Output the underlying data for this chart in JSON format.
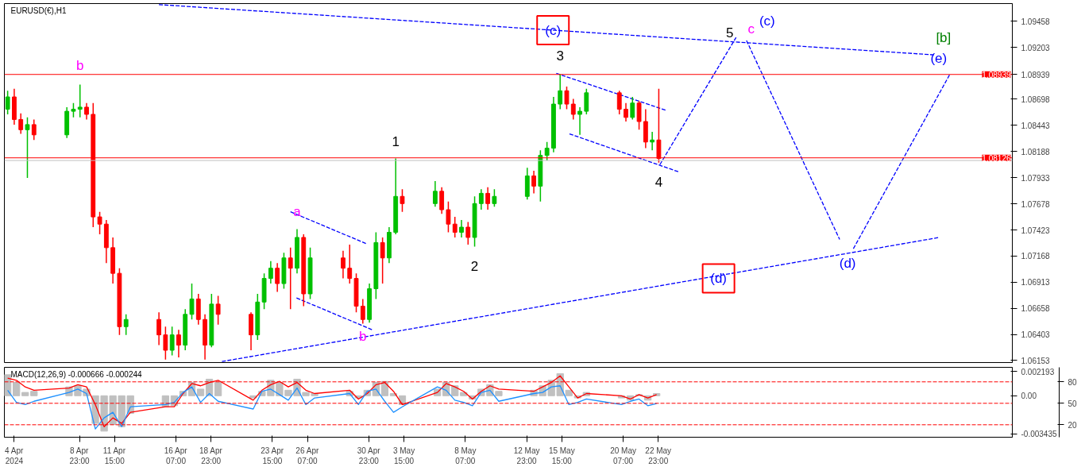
{
  "chart_data": [
    {
      "type": "candlestick",
      "title": "EURUSD(€),H1",
      "tick_labels": "y",
      "xlim": [
        "2024-04-03T06:00",
        "2024-06-18T21:00"
      ],
      "ylim": [
        1.0613,
        1.0963
      ],
      "yticks": [
        1.06153,
        1.06403,
        1.06658,
        1.06913,
        1.07168,
        1.07423,
        1.07678,
        1.07933,
        1.08188,
        1.08443,
        1.08698,
        1.08939,
        1.09203,
        1.09458
      ],
      "x": [
        "2024-04-03T12:00",
        "2024-04-04T00:00",
        "2024-04-04T12:00",
        "2024-04-05T00:00",
        "2024-04-05T12:00",
        "2024-04-08T00:00",
        "2024-04-08T12:00",
        "2024-04-09T00:00",
        "2024-04-09T12:00",
        "2024-04-10T00:00",
        "2024-04-10T12:00",
        "2024-04-11T00:00",
        "2024-04-11T12:00",
        "2024-04-12T00:00",
        "2024-04-12T12:00",
        "2024-04-15T00:00",
        "2024-04-15T12:00",
        "2024-04-16T00:00",
        "2024-04-16T12:00",
        "2024-04-17T00:00",
        "2024-04-17T12:00",
        "2024-04-18T00:00",
        "2024-04-18T12:00",
        "2024-04-19T00:00",
        "2024-04-19T12:00",
        "2024-04-22T00:00",
        "2024-04-22T12:00",
        "2024-04-23T00:00",
        "2024-04-23T12:00",
        "2024-04-24T00:00",
        "2024-04-24T12:00",
        "2024-04-25T00:00",
        "2024-04-25T12:00",
        "2024-04-26T00:00",
        "2024-04-26T12:00",
        "2024-04-29T00:00",
        "2024-04-29T12:00",
        "2024-04-30T00:00",
        "2024-04-30T12:00",
        "2024-05-01T00:00",
        "2024-05-01T12:00",
        "2024-05-02T00:00",
        "2024-05-02T12:00",
        "2024-05-03T00:00",
        "2024-05-03T12:00",
        "2024-05-06T00:00",
        "2024-05-06T12:00",
        "2024-05-07T00:00",
        "2024-05-07T12:00",
        "2024-05-08T00:00",
        "2024-05-08T12:00",
        "2024-05-09T00:00",
        "2024-05-09T12:00",
        "2024-05-10T00:00",
        "2024-05-10T12:00",
        "2024-05-13T00:00",
        "2024-05-13T12:00",
        "2024-05-14T00:00",
        "2024-05-14T12:00",
        "2024-05-15T00:00",
        "2024-05-15T12:00",
        "2024-05-16T00:00",
        "2024-05-16T12:00",
        "2024-05-17T00:00",
        "2024-05-17T12:00",
        "2024-05-20T00:00",
        "2024-05-20T12:00",
        "2024-05-21T00:00",
        "2024-05-21T12:00",
        "2024-05-22T00:00",
        "2024-05-22T12:00",
        "2024-05-23T00:00"
      ],
      "ohlc": [
        [
          1.086,
          1.0878,
          1.0855,
          1.0872
        ],
        [
          1.0872,
          1.088,
          1.0845,
          1.085
        ],
        [
          1.085,
          1.0856,
          1.0836,
          1.084
        ],
        [
          1.084,
          1.0852,
          1.0793,
          1.0845
        ],
        [
          1.0845,
          1.085,
          1.083,
          1.0835
        ],
        [
          1.0835,
          1.0862,
          1.0832,
          1.0858
        ],
        [
          1.0858,
          1.0866,
          1.0852,
          1.086
        ],
        [
          1.086,
          1.0884,
          1.0852,
          1.0862
        ],
        [
          1.0862,
          1.0866,
          1.085,
          1.0855
        ],
        [
          1.0855,
          1.0866,
          1.0745,
          1.0755
        ],
        [
          1.0755,
          1.076,
          1.0738,
          1.0748
        ],
        [
          1.0748,
          1.0752,
          1.071,
          1.0725
        ],
        [
          1.0725,
          1.0735,
          1.069,
          1.07
        ],
        [
          1.07,
          1.0705,
          1.064,
          1.0648
        ],
        [
          1.0648,
          1.066,
          1.064,
          1.0655
        ],
        [
          1.0655,
          1.0662,
          1.063,
          1.064
        ],
        [
          1.064,
          1.0648,
          1.0616,
          1.0625
        ],
        [
          1.0625,
          1.0648,
          1.062,
          1.064
        ],
        [
          1.064,
          1.0645,
          1.0618,
          1.063
        ],
        [
          1.063,
          1.0665,
          1.0625,
          1.066
        ],
        [
          1.066,
          1.069,
          1.0655,
          1.0675
        ],
        [
          1.0675,
          1.068,
          1.065,
          1.0655
        ],
        [
          1.0655,
          1.066,
          1.0616,
          1.063
        ],
        [
          1.063,
          1.068,
          1.0628,
          1.067
        ],
        [
          1.067,
          1.0678,
          1.065,
          1.066
        ],
        [
          1.066,
          1.0662,
          1.0625,
          1.064
        ],
        [
          1.064,
          1.068,
          1.0635,
          1.0672
        ],
        [
          1.0672,
          1.07,
          1.0665,
          1.0695
        ],
        [
          1.0695,
          1.0712,
          1.069,
          1.0705
        ],
        [
          1.0705,
          1.071,
          1.0682,
          1.069
        ],
        [
          1.069,
          1.072,
          1.0685,
          1.0715
        ],
        [
          1.0715,
          1.0725,
          1.0665,
          1.0705
        ],
        [
          1.0705,
          1.0743,
          1.07,
          1.0735
        ],
        [
          1.0735,
          1.0738,
          1.0668,
          1.068
        ],
        [
          1.068,
          1.0725,
          1.0675,
          1.0715
        ],
        [
          1.0715,
          1.0722,
          1.0695,
          1.0705
        ],
        [
          1.0705,
          1.0728,
          1.069,
          1.0695
        ],
        [
          1.0695,
          1.07,
          1.0662,
          1.0668
        ],
        [
          1.0668,
          1.0675,
          1.0651,
          1.0655
        ],
        [
          1.0655,
          1.069,
          1.0652,
          1.0685
        ],
        [
          1.0685,
          1.074,
          1.0675,
          1.073
        ],
        [
          1.073,
          1.0735,
          1.069,
          1.0715
        ],
        [
          1.0715,
          1.0745,
          1.071,
          1.074
        ],
        [
          1.074,
          1.0812,
          1.0738,
          1.0775
        ],
        [
          1.0775,
          1.0782,
          1.076,
          1.0768
        ],
        [
          1.0768,
          1.079,
          1.0765,
          1.078
        ],
        [
          1.078,
          1.0784,
          1.0758,
          1.0762
        ],
        [
          1.0762,
          1.077,
          1.074,
          1.0748
        ],
        [
          1.0748,
          1.0755,
          1.0735,
          1.074
        ],
        [
          1.074,
          1.0752,
          1.0735,
          1.0745
        ],
        [
          1.0745,
          1.075,
          1.0728,
          1.0735
        ],
        [
          1.0735,
          1.0775,
          1.0726,
          1.0768
        ],
        [
          1.0768,
          1.0782,
          1.0762,
          1.0778
        ],
        [
          1.0778,
          1.0784,
          1.0762,
          1.0768
        ],
        [
          1.0768,
          1.0782,
          1.0765,
          1.0775
        ],
        [
          1.0775,
          1.0803,
          1.0772,
          1.0795
        ],
        [
          1.0795,
          1.08,
          1.0778,
          1.0785
        ],
        [
          1.0785,
          1.082,
          1.077,
          1.0815
        ],
        [
          1.0815,
          1.0828,
          1.081,
          1.0822
        ],
        [
          1.0822,
          1.0872,
          1.0818,
          1.0865
        ],
        [
          1.0865,
          1.0894,
          1.086,
          1.0878
        ],
        [
          1.0878,
          1.0882,
          1.086,
          1.0865
        ],
        [
          1.0865,
          1.087,
          1.085,
          1.0855
        ],
        [
          1.0855,
          1.0862,
          1.0835,
          1.0858
        ],
        [
          1.0858,
          1.088,
          1.0855,
          1.0876
        ],
        [
          1.0876,
          1.0878,
          1.0855,
          1.086
        ],
        [
          1.086,
          1.0866,
          1.0848,
          1.0852
        ],
        [
          1.0852,
          1.0872,
          1.085,
          1.0866
        ],
        [
          1.0866,
          1.0868,
          1.084,
          1.0848
        ],
        [
          1.0848,
          1.086,
          1.0822,
          1.0828
        ],
        [
          1.0828,
          1.0838,
          1.082,
          1.083
        ],
        [
          1.083,
          1.088,
          1.0808,
          1.0812
        ]
      ],
      "series": [
        {
          "type": "line",
          "color": "#0000ff",
          "line_style": "dashed",
          "x": [
            "2024-04-15T00:00",
            "2024-06-12T22:00"
          ],
          "values": [
            1.0962,
            1.0913
          ]
        },
        {
          "type": "line",
          "color": "#0000ff",
          "line_style": "dashed",
          "x": [
            "2024-04-19T19:00",
            "2024-06-13T08:00"
          ],
          "values": [
            1.0614,
            1.0735
          ]
        },
        {
          "type": "line",
          "color": "#0000ff",
          "line_style": "dashed",
          "x": [
            "2024-04-25T00:00",
            "2024-04-30T18:00"
          ],
          "values": [
            1.076,
            1.0729
          ]
        },
        {
          "type": "line",
          "color": "#0000ff",
          "line_style": "dashed",
          "x": [
            "2024-04-25T11:00",
            "2024-05-01T05:00"
          ],
          "values": [
            1.0676,
            1.0645
          ]
        },
        {
          "type": "line",
          "color": "#0000ff",
          "line_style": "dashed",
          "x": [
            "2024-05-15T05:00",
            "2024-05-23T13:00"
          ],
          "values": [
            1.0895,
            1.0859
          ]
        },
        {
          "type": "line",
          "color": "#0000ff",
          "line_style": "dashed",
          "x": [
            "2024-05-16T05:00",
            "2024-05-24T12:00"
          ],
          "values": [
            1.0836,
            1.0799
          ]
        },
        {
          "type": "line",
          "color": "#0000ff",
          "line_style": "dashed",
          "x": [
            "2024-05-23T02:00",
            "2024-05-28T21:00"
          ],
          "values": [
            1.0806,
            1.093
          ]
        },
        {
          "type": "line",
          "color": "#0000ff",
          "line_style": "dashed",
          "x": [
            "2024-05-29T16:00",
            "2024-06-05T18:00"
          ],
          "values": [
            1.0927,
            1.0733
          ]
        },
        {
          "type": "line",
          "color": "#0000ff",
          "line_style": "dashed",
          "x": [
            "2024-06-06T19:00",
            "2024-06-14T03:00"
          ],
          "values": [
            1.0724,
            1.0894
          ]
        }
      ],
      "ref_lines": [
        {
          "axis": "y",
          "value": 1.08939,
          "label": "1.08939",
          "color": "#ff0000",
          "line_style": "solid"
        },
        {
          "axis": "y",
          "value": 1.08126,
          "label": "1.08126",
          "color": "#ff0000",
          "line_style": "solid"
        },
        {
          "axis": "y",
          "value": 1.081,
          "label": null,
          "color": "#c0c0c0",
          "line_style": "solid"
        }
      ],
      "annotations": [
        {
          "text": "b",
          "x": "2024-04-09T00:00",
          "y": 1.0884
        },
        {
          "text": "a",
          "x": "2024-04-25T12:00",
          "y": 1.0743
        },
        {
          "text": "b",
          "x": "2024-04-30T12:00",
          "y": 1.0651
        },
        {
          "text": "1",
          "x": "2024-05-03T00:00",
          "y": 1.0812
        },
        {
          "text": "2",
          "x": "2024-05-09T00:00",
          "y": 1.0726
        },
        {
          "text": "3",
          "x": "2024-05-15T12:00",
          "y": 1.0894
        },
        {
          "text": "4",
          "x": "2024-05-23T00:00",
          "y": 1.0808
        },
        {
          "text": "5",
          "x": "2024-05-28T21:00",
          "y": 1.093
        },
        {
          "text": "c",
          "x": "2024-05-29T16:00",
          "y": 1.0927
        },
        {
          "text": "(c)",
          "x": "2024-05-29T16:00",
          "y": 1.0927
        },
        {
          "text": "(c)",
          "x": "2024-05-14T23:00",
          "y": 1.0937
        },
        {
          "text": "(d)",
          "x": "2024-05-27T13:00",
          "y": 1.0695
        },
        {
          "text": "(d)",
          "x": "2024-06-05T18:00",
          "y": 1.0733
        },
        {
          "text": "(e)",
          "x": "2024-06-14T03:00",
          "y": 1.0894
        },
        {
          "text": "[b]",
          "x": "2024-06-14T03:00",
          "y": 1.0894
        }
      ]
    },
    {
      "type": "bar",
      "title": "MACD(12,26,9) -0.000666 -0.000244",
      "xlim": [
        "2024-04-03T06:00",
        "2024-06-18T21:00"
      ],
      "ylim": [
        -0.00375,
        0.00257
      ],
      "yticks": [
        0.002193,
        {
          "value": 0,
          "label": "0.00"
        },
        -0.003435
      ],
      "y2lim": [
        2.6,
        100.3
      ],
      "y2ticks": [
        20,
        50,
        80
      ],
      "xticks": [
        {
          "value": "2024-04-04T00:00",
          "label": "4 Apr 2024"
        },
        {
          "value": "2024-04-08T23:00",
          "label": "8 Apr 23:00"
        },
        {
          "value": "2024-04-11T15:00",
          "label": "11 Apr 15:00"
        },
        {
          "value": "2024-04-16T07:00",
          "label": "16 Apr 07:00"
        },
        {
          "value": "2024-04-18T23:00",
          "label": "18 Apr 23:00"
        },
        {
          "value": "2024-04-23T15:00",
          "label": "23 Apr 15:00"
        },
        {
          "value": "2024-04-26T07:00",
          "label": "26 Apr 07:00"
        },
        {
          "value": "2024-04-30T23:00",
          "label": "30 Apr 23:00"
        },
        {
          "value": "2024-05-03T15:00",
          "label": "3 May 15:00"
        },
        {
          "value": "2024-05-08T07:00",
          "label": "8 May 07:00"
        },
        {
          "value": "2024-05-12T23:00",
          "label": "12 May 23:00"
        },
        {
          "value": "2024-05-15T15:00",
          "label": "15 May 15:00"
        },
        {
          "value": "2024-05-20T07:00",
          "label": "20 May 07:00"
        },
        {
          "value": "2024-05-22T23:00",
          "label": "22 May 23:00"
        }
      ],
      "x": [
        "2024-04-03T12:00",
        "2024-04-04T04:00",
        "2024-04-04T20:00",
        "2024-04-05T12:00",
        "2024-04-08T04:00",
        "2024-04-08T20:00",
        "2024-04-09T12:00",
        "2024-04-10T04:00",
        "2024-04-10T20:00",
        "2024-04-11T12:00",
        "2024-04-12T04:00",
        "2024-04-12T20:00",
        "2024-04-15T12:00",
        "2024-04-16T04:00",
        "2024-04-16T20:00",
        "2024-04-17T12:00",
        "2024-04-18T04:00",
        "2024-04-18T20:00",
        "2024-04-19T12:00",
        "2024-04-22T04:00",
        "2024-04-22T20:00",
        "2024-04-23T12:00",
        "2024-04-24T04:00",
        "2024-04-24T20:00",
        "2024-04-25T12:00",
        "2024-04-26T04:00",
        "2024-04-26T20:00",
        "2024-04-29T12:00",
        "2024-04-30T04:00",
        "2024-04-30T20:00",
        "2024-05-01T12:00",
        "2024-05-02T04:00",
        "2024-05-02T20:00",
        "2024-05-03T12:00",
        "2024-05-06T04:00",
        "2024-05-06T20:00",
        "2024-05-07T12:00",
        "2024-05-08T04:00",
        "2024-05-08T20:00",
        "2024-05-09T12:00",
        "2024-05-10T04:00",
        "2024-05-10T20:00",
        "2024-05-13T12:00",
        "2024-05-14T04:00",
        "2024-05-14T20:00",
        "2024-05-15T12:00",
        "2024-05-16T04:00",
        "2024-05-16T20:00",
        "2024-05-17T12:00",
        "2024-05-20T04:00",
        "2024-05-20T20:00",
        "2024-05-21T12:00",
        "2024-05-22T04:00",
        "2024-05-22T20:00"
      ],
      "series": [
        {
          "type": "bar",
          "color": "#c0c0c0",
          "values": [
            0.0019,
            0.0012,
            0.0003,
            0.0004,
            0.0008,
            0.0009,
            0.0006,
            -0.0025,
            -0.0032,
            -0.0026,
            -0.0028,
            -0.0016,
            -0.001,
            -0.0009,
            0.0004,
            0.0012,
            0.0006,
            0.0015,
            0.0012,
            -0.0002,
            0.0004,
            0.0014,
            0.0012,
            0.0005,
            0.0015,
            0.0003,
            0.0002,
            0.0004,
            -0.0002,
            0.0005,
            0.0012,
            0.0013,
            0.0002,
            -0.0008,
            0.0006,
            0.0012,
            0.0009,
            0.0003,
            -0.0003,
            0.0006,
            0.001,
            0.0004,
            0.0005,
            0.0009,
            0.0014,
            0.002,
            0.0005,
            -0.0002,
            0.0003,
            -0.0002,
            -0.0004,
            0.0001,
            -0.0004,
            0.0002
          ]
        },
        {
          "type": "line",
          "color": "#ff0000",
          "values": [
            0.0016,
            0.0014,
            0.0008,
            0.0005,
            0.0007,
            0.001,
            0.0008,
            -0.0008,
            -0.0028,
            -0.002,
            -0.0025,
            -0.0015,
            -0.001,
            -0.001,
            0.0002,
            0.0011,
            0.0009,
            0.0012,
            0.0014,
            -0.0004,
            0.0005,
            0.001,
            0.0013,
            0.0008,
            0.0012,
            0.0005,
            0.0002,
            0.0005,
            -0.0003,
            0.0002,
            0.001,
            0.0012,
            0.0004,
            -0.0008,
            0.0003,
            0.0011,
            0.0008,
            0.0004,
            -0.0003,
            0.0004,
            0.0009,
            0.0006,
            0.0004,
            0.0008,
            0.0012,
            0.0018,
            0.0008,
            -0.0002,
            0.0002,
            0.0,
            -0.0003,
            0.0001,
            -0.0002,
            0.0001
          ]
        },
        {
          "type": "line",
          "color": "#1e90ff",
          "values": [
            0.0005,
            -0.0006,
            -0.0008,
            -0.0005,
            0.0003,
            0.0006,
            0.0002,
            -0.003,
            -0.002,
            -0.0015,
            -0.0028,
            -0.001,
            -0.0008,
            -0.0006,
            0.0003,
            0.0008,
            -0.0006,
            0.0002,
            -0.0005,
            -0.0012,
            0.0004,
            0.0006,
            0.0001,
            -0.0004,
            0.0007,
            -0.0008,
            -0.0002,
            0.0002,
            -0.0008,
            0.0004,
            0.0006,
            -0.0005,
            -0.0015,
            -0.001,
            0.0008,
            0.0005,
            -0.0004,
            -0.0006,
            -0.0009,
            0.0003,
            0.0005,
            -0.0005,
            0.0002,
            0.0003,
            0.0008,
            0.0009,
            -0.0008,
            -0.0006,
            -0.0003,
            -0.0008,
            -0.0005,
            -0.0003,
            -0.0009,
            -0.0007
          ]
        }
      ],
      "ref_lines": [
        {
          "axis": "y2",
          "value": 80,
          "label": null,
          "color": "#ff0000",
          "line_style": "dashed"
        },
        {
          "axis": "y2",
          "value": 50,
          "label": null,
          "color": "#ff0000",
          "line_style": "dashed"
        },
        {
          "axis": "y2",
          "value": 20,
          "label": null,
          "color": "#ff0000",
          "line_style": "dashed"
        }
      ]
    }
  ]
}
